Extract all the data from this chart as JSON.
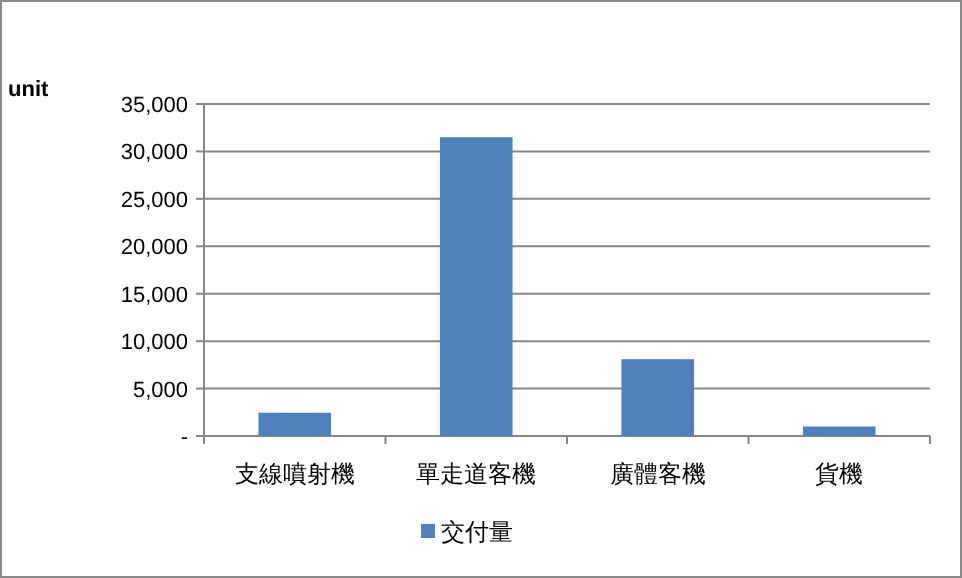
{
  "chart_data": {
    "type": "bar",
    "ylabel": "unit",
    "categories": [
      "支線噴射機",
      "單走道客機",
      "廣體客機",
      "貨機"
    ],
    "series": [
      {
        "name": "交付量",
        "color": "#4f81bd",
        "values": [
          2450,
          31500,
          8100,
          1000
        ]
      }
    ],
    "ylim": [
      0,
      35000
    ],
    "yticks": [
      {
        "value": 0,
        "label": "-"
      },
      {
        "value": 5000,
        "label": "5,000"
      },
      {
        "value": 10000,
        "label": "10,000"
      },
      {
        "value": 15000,
        "label": "15,000"
      },
      {
        "value": 20000,
        "label": "20,000"
      },
      {
        "value": 25000,
        "label": "25,000"
      },
      {
        "value": 30000,
        "label": "30,000"
      },
      {
        "value": 35000,
        "label": "35,000"
      }
    ],
    "grid": "y",
    "legend": "bottom"
  }
}
